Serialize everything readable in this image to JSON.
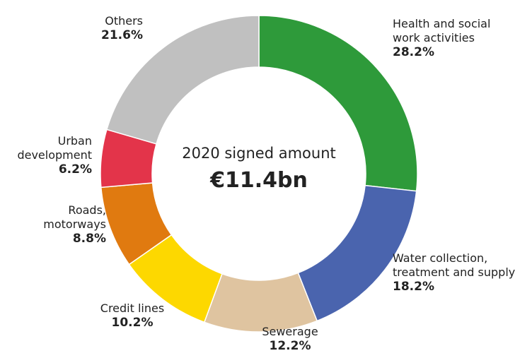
{
  "chart_data": {
    "type": "pie",
    "center_label": "2020 signed amount",
    "center_value": "€11.4bn",
    "categories": [
      "Health and social work activities",
      "Water collection, treatment and supply",
      "Sewerage",
      "Credit lines",
      "Roads, motorways",
      "Urban development",
      "Others"
    ],
    "values": [
      28.2,
      18.2,
      12.2,
      10.2,
      8.8,
      6.2,
      21.6
    ],
    "value_labels": [
      "28.2%",
      "18.2%",
      "12.2%",
      "10.2%",
      "8.8%",
      "6.2%",
      "21.6%"
    ],
    "colors": [
      "#2e9a3a",
      "#4a64ae",
      "#dfc4a0",
      "#fdd800",
      "#e07a10",
      "#e3344a",
      "#c0c0c0"
    ]
  }
}
